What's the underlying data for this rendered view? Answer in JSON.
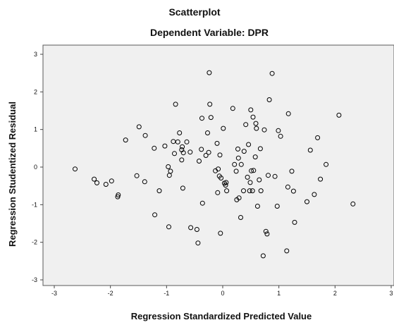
{
  "chart_data": {
    "type": "scatter",
    "title": "Scatterplot",
    "subtitle": "Dependent Variable: DPR",
    "xlabel": "Regression Standardized Predicted Value",
    "ylabel": "Regression Studentized Residual",
    "xlim": [
      -3.0,
      3.0
    ],
    "ylim": [
      -3.0,
      3.0
    ],
    "xticks": [
      "-3",
      "-2",
      "-1",
      "0",
      "1",
      "2",
      "3"
    ],
    "yticks": [
      "-3",
      "-2",
      "-1",
      "0",
      "1",
      "2",
      "3"
    ],
    "grid": false,
    "plot_background": "#f0f0f0",
    "marker_color": "#000000",
    "points": [
      [
        -2.63,
        -0.05
      ],
      [
        -2.29,
        -0.32
      ],
      [
        -2.24,
        -0.42
      ],
      [
        -2.08,
        -0.46
      ],
      [
        -1.98,
        -0.37
      ],
      [
        -1.87,
        -0.79
      ],
      [
        -1.86,
        -0.74
      ],
      [
        -1.73,
        0.72
      ],
      [
        -1.53,
        -0.23
      ],
      [
        -1.49,
        1.07
      ],
      [
        -1.39,
        -0.39
      ],
      [
        -1.38,
        0.84
      ],
      [
        -1.22,
        0.5
      ],
      [
        -1.21,
        -1.27
      ],
      [
        -1.13,
        -0.63
      ],
      [
        -1.03,
        0.56
      ],
      [
        -0.97,
        0.01
      ],
      [
        -0.96,
        -1.59
      ],
      [
        -0.95,
        -0.22
      ],
      [
        -0.93,
        -0.11
      ],
      [
        -0.88,
        0.68
      ],
      [
        -0.86,
        0.36
      ],
      [
        -0.84,
        1.67
      ],
      [
        -0.8,
        0.67
      ],
      [
        -0.77,
        0.91
      ],
      [
        -0.73,
        0.46
      ],
      [
        -0.73,
        0.19
      ],
      [
        -0.72,
        0.54
      ],
      [
        -0.71,
        -0.56
      ],
      [
        -0.7,
        0.38
      ],
      [
        -0.64,
        0.67
      ],
      [
        -0.58,
        0.4
      ],
      [
        -0.57,
        -1.61
      ],
      [
        -0.46,
        -1.66
      ],
      [
        -0.44,
        -2.02
      ],
      [
        -0.42,
        0.16
      ],
      [
        -0.38,
        0.47
      ],
      [
        -0.37,
        1.3
      ],
      [
        -0.36,
        -0.96
      ],
      [
        -0.3,
        0.31
      ],
      [
        -0.27,
        0.91
      ],
      [
        -0.25,
        0.39
      ],
      [
        -0.24,
        2.51
      ],
      [
        -0.23,
        1.67
      ],
      [
        -0.21,
        1.32
      ],
      [
        -0.13,
        -0.1
      ],
      [
        -0.1,
        0.63
      ],
      [
        -0.09,
        -0.68
      ],
      [
        -0.08,
        -0.05
      ],
      [
        -0.06,
        -0.24
      ],
      [
        -0.05,
        0.32
      ],
      [
        -0.04,
        -1.76
      ],
      [
        -0.03,
        -0.29
      ],
      [
        0.01,
        1.03
      ],
      [
        0.03,
        -0.43
      ],
      [
        0.05,
        -0.48
      ],
      [
        0.06,
        -0.41
      ],
      [
        0.07,
        -0.63
      ],
      [
        0.18,
        1.56
      ],
      [
        0.21,
        0.07
      ],
      [
        0.24,
        -0.11
      ],
      [
        0.25,
        -0.87
      ],
      [
        0.27,
        0.48
      ],
      [
        0.28,
        0.24
      ],
      [
        0.29,
        -0.82
      ],
      [
        0.32,
        -1.34
      ],
      [
        0.33,
        0.07
      ],
      [
        0.37,
        -0.63
      ],
      [
        0.38,
        0.42
      ],
      [
        0.41,
        1.13
      ],
      [
        0.44,
        -0.27
      ],
      [
        0.46,
        0.6
      ],
      [
        0.48,
        -0.63
      ],
      [
        0.49,
        -0.41
      ],
      [
        0.5,
        1.52
      ],
      [
        0.51,
        -0.1
      ],
      [
        0.53,
        -0.63
      ],
      [
        0.54,
        1.33
      ],
      [
        0.55,
        -0.09
      ],
      [
        0.58,
        0.27
      ],
      [
        0.59,
        1.16
      ],
      [
        0.6,
        1.03
      ],
      [
        0.62,
        -1.04
      ],
      [
        0.65,
        -0.34
      ],
      [
        0.67,
        0.49
      ],
      [
        0.68,
        -0.63
      ],
      [
        0.72,
        -2.36
      ],
      [
        0.74,
        0.99
      ],
      [
        0.77,
        -1.71
      ],
      [
        0.79,
        -1.78
      ],
      [
        0.81,
        -0.22
      ],
      [
        0.83,
        1.79
      ],
      [
        0.88,
        2.49
      ],
      [
        0.93,
        -0.25
      ],
      [
        0.97,
        -1.04
      ],
      [
        0.99,
        0.97
      ],
      [
        1.03,
        0.82
      ],
      [
        1.14,
        -2.23
      ],
      [
        1.16,
        -0.53
      ],
      [
        1.17,
        1.42
      ],
      [
        1.23,
        -0.11
      ],
      [
        1.26,
        -0.64
      ],
      [
        1.28,
        -1.47
      ],
      [
        1.5,
        -0.92
      ],
      [
        1.56,
        0.45
      ],
      [
        1.63,
        -0.73
      ],
      [
        1.69,
        0.78
      ],
      [
        1.74,
        -0.32
      ],
      [
        1.84,
        0.07
      ],
      [
        2.07,
        1.38
      ],
      [
        2.32,
        -0.98
      ]
    ]
  }
}
